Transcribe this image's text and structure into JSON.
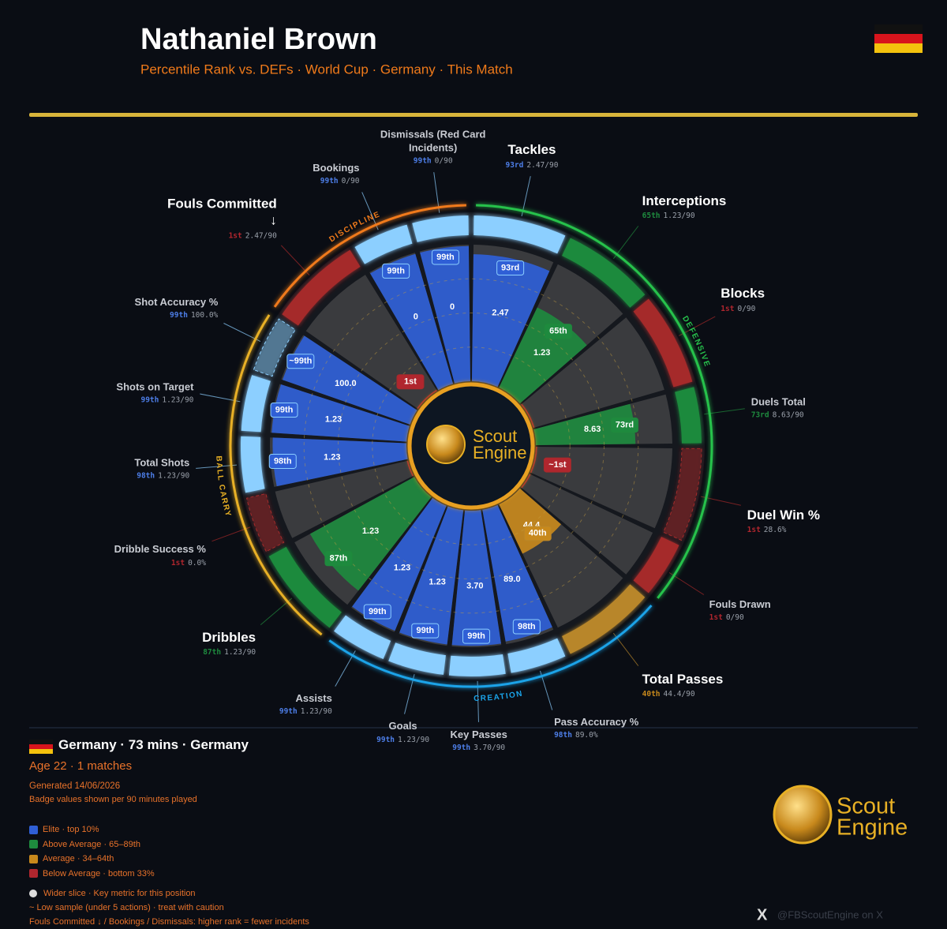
{
  "header": {
    "title": "Nathaniel Brown",
    "subtitle": "Percentile Rank vs. DEFs · World Cup · Germany · This Match"
  },
  "chart_data": {
    "type": "pizza",
    "rlim": [
      0,
      100
    ],
    "rticks": [
      25,
      50,
      75
    ],
    "groups": [
      {
        "name": "DEFENSIVE",
        "color": "#27c24c"
      },
      {
        "name": "CREATION",
        "color": "#1aa3e8"
      },
      {
        "name": "BALL CARRY",
        "color": "#e8b025"
      },
      {
        "name": "DISCIPLINE",
        "color": "#f07a1a"
      }
    ],
    "tiers": [
      {
        "name": "Elite · top 10%",
        "color": "#2f5fd6",
        "ring": "#8ccfff"
      },
      {
        "name": "Above Average · 65–89th",
        "color": "#1e8a3e",
        "ring": "#1f8a3c"
      },
      {
        "name": "Average · 34–64th",
        "color": "#c8891c",
        "ring": "#b8862a"
      },
      {
        "name": "Below Average · bottom 33%",
        "color": "#b0262e",
        "ring": "#a52a2a"
      }
    ],
    "categories": [
      "Tackles",
      "Interceptions",
      "Blocks",
      "Duels Total",
      "Duel Win %",
      "Fouls Drawn",
      "Total Passes",
      "Pass Accuracy %",
      "Key Passes",
      "Goals",
      "Assists",
      "Dribbles",
      "Dribble Success %",
      "Total Shots",
      "Shots on Target",
      "Shot Accuracy %",
      "Fouls Committed ↓",
      "Bookings",
      "Dismissals (Red Card Incidents)"
    ],
    "group": [
      0,
      0,
      0,
      0,
      0,
      0,
      1,
      1,
      1,
      1,
      1,
      2,
      2,
      2,
      2,
      2,
      3,
      3,
      3
    ],
    "tier": [
      0,
      1,
      3,
      1,
      3,
      3,
      2,
      0,
      0,
      0,
      0,
      1,
      3,
      0,
      0,
      0,
      3,
      0,
      0
    ],
    "key": [
      true,
      true,
      true,
      false,
      true,
      false,
      true,
      false,
      false,
      false,
      false,
      true,
      false,
      false,
      false,
      false,
      true,
      false,
      false
    ],
    "low_sample": [
      false,
      false,
      false,
      false,
      true,
      false,
      false,
      false,
      false,
      false,
      false,
      false,
      true,
      false,
      false,
      true,
      false,
      false,
      false
    ],
    "values": [
      93,
      65,
      1,
      73,
      1,
      1,
      40,
      98,
      99,
      99,
      99,
      87,
      1,
      98,
      99,
      99,
      1,
      99,
      99
    ],
    "value_labels": [
      "93rd",
      "65th",
      "1st",
      "73rd",
      "1st",
      "1st",
      "40th",
      "98th",
      "99th",
      "99th",
      "99th",
      "87th",
      "1st",
      "98th",
      "99th",
      "99th",
      "1st",
      "99th",
      "99th"
    ],
    "badge_labels": [
      "93rd",
      "65th",
      null,
      "73rd",
      "~1st",
      null,
      "40th",
      "98th",
      "99th",
      "99th",
      "99th",
      "87th",
      null,
      "98th",
      "99th",
      "~99th",
      "1st",
      "99th",
      "99th"
    ],
    "per90": [
      2.47,
      1.23,
      0,
      8.63,
      28.6,
      0,
      44.4,
      89.0,
      3.7,
      1.23,
      1.23,
      1.23,
      0.0,
      1.23,
      1.23,
      100.0,
      2.47,
      0,
      0
    ],
    "per90_labels": [
      "2.47/90",
      "1.23/90",
      "0/90",
      "8.63/90",
      "28.6%",
      "0/90",
      "44.4/90",
      "89.0%",
      "3.70/90",
      "1.23/90",
      "1.23/90",
      "1.23/90",
      "0.0%",
      "1.23/90",
      "1.23/90",
      "100.0%",
      "2.47/90",
      "0/90",
      "0/90"
    ],
    "inner_labels": [
      "2.47",
      "1.23",
      null,
      "8.63",
      null,
      null,
      "44.4",
      "89.0",
      "3.70",
      "1.23",
      "1.23",
      "1.23",
      null,
      "1.23",
      "1.23",
      "100.0",
      null,
      "0",
      "0"
    ]
  },
  "logo": {
    "line1": "Scout",
    "line2": "Engine"
  },
  "footer": {
    "team": "Germany · 73 mins · Germany",
    "age": "Age 22 · 1 matches",
    "generated": "Generated 14/06/2026",
    "note": "Badge values shown per 90 minutes played",
    "key_note": "Wider slice · Key metric for this position",
    "low_note": "~ Low sample (under 5 actions) · treat with caution",
    "fouls_note": "Fouls Committed ↓ / Bookings / Dismissals: higher rank = fewer incidents",
    "handle": "@FBScoutEngine on X"
  }
}
